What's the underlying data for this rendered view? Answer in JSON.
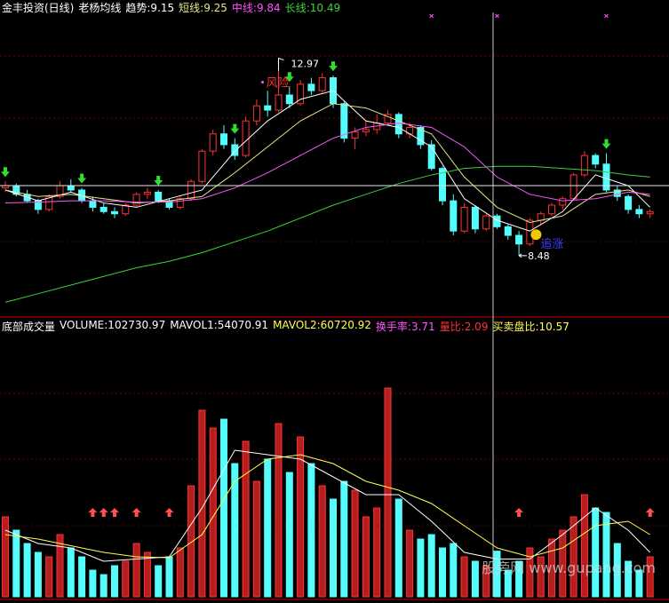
{
  "chart_data": [
    {
      "type": "candlestick",
      "title": "金丰投资(日线)",
      "subtitle": "老杨均线",
      "ylim": [
        7.1,
        14.4
      ],
      "up_color": "#ff3232",
      "down_color": "#54fcfc",
      "candles": [
        [
          10.05,
          10.2,
          9.95,
          10.1
        ],
        [
          10.1,
          10.15,
          9.85,
          9.9
        ],
        [
          9.9,
          10.0,
          9.7,
          9.75
        ],
        [
          9.75,
          9.8,
          9.45,
          9.55
        ],
        [
          9.55,
          9.9,
          9.5,
          9.85
        ],
        [
          9.85,
          10.2,
          9.8,
          10.1
        ],
        [
          10.1,
          10.25,
          9.95,
          10.0
        ],
        [
          10.0,
          10.05,
          9.7,
          9.75
        ],
        [
          9.75,
          9.85,
          9.5,
          9.6
        ],
        [
          9.6,
          9.7,
          9.45,
          9.5
        ],
        [
          9.5,
          9.6,
          9.35,
          9.45
        ],
        [
          9.45,
          9.7,
          9.4,
          9.65
        ],
        [
          9.65,
          9.95,
          9.6,
          9.9
        ],
        [
          9.9,
          10.05,
          9.8,
          9.95
        ],
        [
          9.95,
          10.0,
          9.7,
          9.75
        ],
        [
          9.75,
          9.8,
          9.55,
          9.6
        ],
        [
          9.6,
          9.85,
          9.55,
          9.8
        ],
        [
          9.8,
          10.25,
          9.75,
          10.2
        ],
        [
          10.2,
          10.95,
          10.15,
          10.9
        ],
        [
          10.9,
          11.4,
          10.8,
          11.3
        ],
        [
          11.3,
          11.5,
          10.95,
          11.05
        ],
        [
          11.05,
          11.2,
          10.7,
          10.8
        ],
        [
          10.8,
          11.7,
          10.75,
          11.6
        ],
        [
          11.6,
          12.1,
          11.5,
          11.95
        ],
        [
          11.95,
          12.3,
          11.7,
          11.85
        ],
        [
          11.85,
          12.97,
          11.8,
          12.2
        ],
        [
          12.2,
          12.4,
          11.9,
          12.0
        ],
        [
          12.0,
          12.55,
          11.95,
          12.45
        ],
        [
          12.45,
          12.6,
          12.2,
          12.3
        ],
        [
          12.3,
          12.7,
          12.25,
          12.6
        ],
        [
          12.6,
          12.65,
          11.9,
          12.0
        ],
        [
          12.0,
          12.05,
          11.1,
          11.2
        ],
        [
          11.2,
          11.45,
          10.95,
          11.35
        ],
        [
          11.35,
          11.6,
          11.25,
          11.4
        ],
        [
          11.4,
          11.75,
          11.3,
          11.55
        ],
        [
          11.55,
          11.85,
          11.5,
          11.75
        ],
        [
          11.75,
          11.8,
          11.2,
          11.3
        ],
        [
          11.3,
          11.55,
          11.2,
          11.45
        ],
        [
          11.45,
          11.5,
          10.95,
          11.05
        ],
        [
          11.05,
          11.15,
          10.45,
          10.5
        ],
        [
          10.5,
          10.55,
          9.65,
          9.75
        ],
        [
          9.75,
          9.9,
          8.95,
          9.05
        ],
        [
          9.05,
          9.7,
          9.0,
          9.6
        ],
        [
          9.6,
          9.65,
          9.0,
          9.1
        ],
        [
          9.1,
          9.45,
          9.05,
          9.4
        ],
        [
          9.4,
          9.45,
          9.1,
          9.15
        ],
        [
          9.15,
          9.2,
          8.85,
          8.95
        ],
        [
          8.95,
          9.05,
          8.48,
          8.75
        ],
        [
          8.75,
          9.35,
          8.7,
          9.3
        ],
        [
          9.3,
          9.5,
          9.2,
          9.45
        ],
        [
          9.45,
          9.7,
          9.4,
          9.65
        ],
        [
          9.65,
          9.85,
          9.55,
          9.8
        ],
        [
          9.8,
          10.4,
          9.75,
          10.35
        ],
        [
          10.35,
          10.9,
          10.3,
          10.8
        ],
        [
          10.8,
          10.85,
          10.5,
          10.6
        ],
        [
          10.6,
          10.85,
          9.95,
          10.0
        ],
        [
          10.0,
          10.1,
          9.75,
          9.85
        ],
        [
          9.85,
          9.9,
          9.45,
          9.55
        ],
        [
          9.55,
          9.65,
          9.35,
          9.45
        ],
        [
          9.45,
          9.55,
          9.35,
          9.5
        ]
      ],
      "series": [
        {
          "name": "趋势:9.15",
          "color": "#ffffff",
          "x": [
            0,
            3,
            6,
            9,
            12,
            15,
            18,
            21,
            24,
            27,
            30,
            33,
            36,
            39,
            42,
            45,
            48,
            51,
            54,
            57,
            59
          ],
          "values": [
            10.0,
            9.75,
            9.95,
            9.7,
            9.6,
            9.8,
            10.0,
            10.9,
            11.6,
            12.1,
            12.3,
            11.6,
            11.45,
            11.0,
            9.8,
            9.3,
            9.05,
            9.5,
            10.35,
            10.1,
            9.6
          ]
        },
        {
          "name": "短线:9.25",
          "color": "#e6e68c",
          "x": [
            0,
            3,
            6,
            9,
            12,
            15,
            18,
            21,
            24,
            27,
            30,
            33,
            36,
            39,
            42,
            45,
            48,
            51,
            54,
            57,
            59
          ],
          "values": [
            10.0,
            9.85,
            9.9,
            9.8,
            9.7,
            9.75,
            9.85,
            10.4,
            11.0,
            11.6,
            12.0,
            11.9,
            11.6,
            11.3,
            10.3,
            9.6,
            9.25,
            9.4,
            9.9,
            10.0,
            9.85
          ]
        },
        {
          "name": "中线:9.84",
          "color": "#ff54ff",
          "x": [
            0,
            3,
            6,
            9,
            12,
            15,
            18,
            21,
            24,
            27,
            30,
            33,
            36,
            39,
            42,
            45,
            48,
            51,
            54,
            57,
            59
          ],
          "values": [
            9.7,
            9.72,
            9.75,
            9.75,
            9.72,
            9.72,
            9.8,
            10.05,
            10.4,
            10.8,
            11.2,
            11.45,
            11.55,
            11.45,
            11.0,
            10.3,
            9.9,
            9.75,
            9.8,
            9.95,
            9.9
          ]
        },
        {
          "name": "长线:10.49",
          "color": "#3cd23c",
          "x": [
            0,
            3,
            6,
            9,
            12,
            15,
            18,
            21,
            24,
            27,
            30,
            33,
            36,
            39,
            42,
            45,
            48,
            51,
            54,
            57,
            59
          ],
          "values": [
            7.4,
            7.6,
            7.8,
            8.0,
            8.2,
            8.35,
            8.55,
            8.8,
            9.05,
            9.35,
            9.65,
            9.9,
            10.15,
            10.35,
            10.5,
            10.55,
            10.55,
            10.5,
            10.45,
            10.35,
            10.3
          ]
        }
      ],
      "high_label": {
        "index": 25,
        "value": 12.97
      },
      "low_label": {
        "index": 47,
        "value": 8.48
      },
      "signals": [
        {
          "text": "风险",
          "index": 25,
          "color": "#ff3232"
        },
        {
          "text": "追涨",
          "index": 48,
          "color": "#3c3cff"
        }
      ],
      "down_arrows": [
        0,
        7,
        14,
        21,
        26,
        30,
        55
      ],
      "x_marks": [
        39,
        45,
        55
      ]
    },
    {
      "type": "volume",
      "title": "底部成交量",
      "volume_label": "VOLUME:102730.97",
      "ylim": [
        0,
        600000
      ],
      "values": [
        180000,
        150000,
        120000,
        100000,
        90000,
        140000,
        110000,
        90000,
        60000,
        50000,
        70000,
        80000,
        120000,
        100000,
        70000,
        90000,
        110000,
        250000,
        420000,
        380000,
        400000,
        300000,
        350000,
        260000,
        310000,
        390000,
        280000,
        360000,
        300000,
        250000,
        220000,
        260000,
        240000,
        180000,
        200000,
        470000,
        220000,
        150000,
        130000,
        140000,
        110000,
        120000,
        90000,
        80000,
        70000,
        102730.97,
        60000,
        80000,
        110000,
        90000,
        130000,
        150000,
        180000,
        230000,
        200000,
        190000,
        120000,
        80000,
        60000,
        90000
      ],
      "series": [
        {
          "name": "MAVOL1:54070.91",
          "color": "#ffffff",
          "x": [
            0,
            3,
            6,
            9,
            12,
            15,
            18,
            21,
            24,
            27,
            30,
            33,
            36,
            39,
            42,
            45,
            48,
            51,
            54,
            57,
            59
          ],
          "values": [
            150000,
            120000,
            110000,
            80000,
            85000,
            90000,
            200000,
            330000,
            320000,
            310000,
            270000,
            230000,
            230000,
            170000,
            100000,
            85000,
            85000,
            140000,
            200000,
            150000,
            100000
          ]
        },
        {
          "name": "MAVOL2:60720.92",
          "color": "#ffff54",
          "x": [
            0,
            3,
            6,
            9,
            12,
            15,
            18,
            21,
            24,
            27,
            30,
            33,
            36,
            39,
            42,
            45,
            48,
            51,
            54,
            57,
            59
          ],
          "values": [
            140000,
            130000,
            115000,
            100000,
            90000,
            88000,
            140000,
            260000,
            310000,
            320000,
            300000,
            260000,
            240000,
            210000,
            160000,
            110000,
            90000,
            110000,
            160000,
            170000,
            140000
          ]
        }
      ],
      "stats": [
        {
          "text": "换手率:3.71",
          "color": "#ff54ff"
        },
        {
          "text": "量比:2.09",
          "color": "#ff3232"
        },
        {
          "text": "买卖盘比:10.57",
          "color": "#ffff54"
        }
      ],
      "up_arrows": [
        8,
        9,
        10,
        12,
        15,
        47,
        59
      ],
      "watermark": "股旁网 www.gupang.com"
    }
  ]
}
